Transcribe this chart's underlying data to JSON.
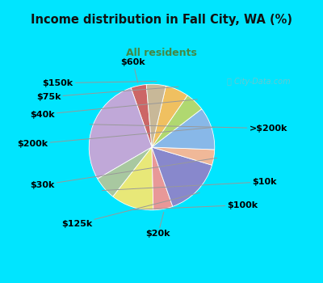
{
  "title": "Income distribution in Fall City, WA (%)",
  "subtitle": "All residents",
  "title_color": "#111111",
  "subtitle_color": "#448844",
  "bg_top": "#00e5ff",
  "bg_chart": "#d8eedd",
  "watermark": "Ⓣ City-Data.com",
  "labels": [
    "$60k",
    ">$200k",
    "$10k",
    "$100k",
    "$20k",
    "$125k",
    "$30k",
    "$200k",
    "$40k",
    "$75k",
    "$150k"
  ],
  "values": [
    4,
    28,
    6,
    11,
    5,
    15,
    4,
    11,
    5,
    6,
    5
  ],
  "colors": [
    "#cc6666",
    "#c0a8d8",
    "#a8c8a0",
    "#e8e878",
    "#e89898",
    "#8888cc",
    "#f0b898",
    "#88b8e8",
    "#b0d870",
    "#f0c060",
    "#c8b898"
  ],
  "startangle": 95,
  "label_fontsize": 8
}
